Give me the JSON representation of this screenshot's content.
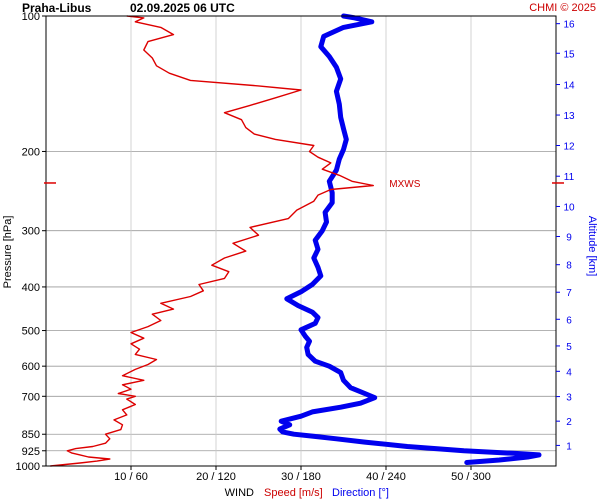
{
  "header": {
    "station": "Praha-Libus",
    "datetime": "02.09.2025 06 UTC",
    "credit": "CHMI © 2025"
  },
  "chart_data": {
    "type": "line",
    "left_axis": {
      "label": "Pressure [hPa]",
      "scale": "log",
      "range": [
        1000,
        100
      ],
      "ticks": [
        100,
        200,
        300,
        400,
        500,
        600,
        700,
        850,
        925,
        1000
      ]
    },
    "right_axis": {
      "label": "Altitude [km]",
      "ticks": [
        1,
        2,
        3,
        4,
        5,
        6,
        7,
        8,
        9,
        10,
        11,
        12,
        13,
        14,
        15,
        16
      ],
      "pressure_at_km": [
        {
          "km": 1,
          "p": 900
        },
        {
          "km": 2,
          "p": 795
        },
        {
          "km": 3,
          "p": 701
        },
        {
          "km": 4,
          "p": 616
        },
        {
          "km": 5,
          "p": 541
        },
        {
          "km": 6,
          "p": 472
        },
        {
          "km": 7,
          "p": 411
        },
        {
          "km": 8,
          "p": 357
        },
        {
          "km": 9,
          "p": 309
        },
        {
          "km": 10,
          "p": 265
        },
        {
          "km": 11,
          "p": 227
        },
        {
          "km": 12,
          "p": 194
        },
        {
          "km": 13,
          "p": 166
        },
        {
          "km": 14,
          "p": 142
        },
        {
          "km": 15,
          "p": 121
        },
        {
          "km": 16,
          "p": 104
        }
      ]
    },
    "bottom_axis": {
      "title": "WIND",
      "speed_label": "Speed [m/s]",
      "direction_label": "Direction [°]",
      "speed_range": [
        0,
        60
      ],
      "direction_range": [
        0,
        360
      ],
      "ticks": [
        {
          "speed": 10,
          "label": "10 / 60"
        },
        {
          "speed": 20,
          "label": "20 / 120"
        },
        {
          "speed": 30,
          "label": "30 / 180"
        },
        {
          "speed": 40,
          "label": "40 / 240"
        },
        {
          "speed": 50,
          "label": "50 / 300"
        }
      ]
    },
    "annotation": {
      "label": "MXWS",
      "p": 235,
      "speed": 38.5
    },
    "grid": true,
    "series": [
      {
        "name": "Speed [m/s]",
        "color": "#dd0000",
        "points": [
          [
            1000,
            0.5
          ],
          [
            985,
            4
          ],
          [
            975,
            6
          ],
          [
            965,
            7.5
          ],
          [
            955,
            5
          ],
          [
            945,
            4
          ],
          [
            935,
            3
          ],
          [
            925,
            2.5
          ],
          [
            915,
            3.5
          ],
          [
            905,
            5.5
          ],
          [
            890,
            7
          ],
          [
            870,
            7.5
          ],
          [
            850,
            7
          ],
          [
            830,
            8.8
          ],
          [
            810,
            9
          ],
          [
            790,
            8
          ],
          [
            770,
            9.5
          ],
          [
            750,
            9
          ],
          [
            730,
            10.5
          ],
          [
            710,
            9.5
          ],
          [
            700,
            10.5
          ],
          [
            690,
            8.5
          ],
          [
            675,
            10
          ],
          [
            660,
            9
          ],
          [
            645,
            11.5
          ],
          [
            630,
            9
          ],
          [
            610,
            10.5
          ],
          [
            595,
            12
          ],
          [
            580,
            13
          ],
          [
            565,
            10.5
          ],
          [
            550,
            11
          ],
          [
            535,
            10
          ],
          [
            520,
            11.5
          ],
          [
            505,
            10
          ],
          [
            490,
            12
          ],
          [
            475,
            13.5
          ],
          [
            460,
            12.5
          ],
          [
            448,
            15
          ],
          [
            435,
            13.5
          ],
          [
            420,
            17
          ],
          [
            408,
            18.5
          ],
          [
            395,
            18
          ],
          [
            383,
            21
          ],
          [
            370,
            21.5
          ],
          [
            358,
            19.5
          ],
          [
            345,
            21
          ],
          [
            333,
            23.5
          ],
          [
            320,
            22
          ],
          [
            307,
            25
          ],
          [
            295,
            24
          ],
          [
            282,
            28.5
          ],
          [
            270,
            29.5
          ],
          [
            258,
            31.5
          ],
          [
            250,
            32
          ],
          [
            243,
            33.5
          ],
          [
            238,
            38.5
          ],
          [
            233,
            36
          ],
          [
            226,
            34.5
          ],
          [
            219,
            32.5
          ],
          [
            212,
            33.5
          ],
          [
            206,
            32
          ],
          [
            200,
            31
          ],
          [
            194,
            31.5
          ],
          [
            188,
            27
          ],
          [
            183,
            24.5
          ],
          [
            177,
            23.5
          ],
          [
            170,
            23
          ],
          [
            164,
            21
          ],
          [
            158,
            24
          ],
          [
            152,
            27
          ],
          [
            146,
            30
          ],
          [
            143,
            25
          ],
          [
            139,
            17
          ],
          [
            134,
            14.5
          ],
          [
            129,
            13
          ],
          [
            124,
            12.5
          ],
          [
            119,
            11.5
          ],
          [
            114,
            12
          ],
          [
            110,
            15
          ],
          [
            106,
            13.5
          ],
          [
            103,
            10.5
          ],
          [
            101,
            11.5
          ],
          [
            100,
            9.5
          ]
        ]
      },
      {
        "name": "Direction [°]",
        "color": "#0000ee",
        "points": [
          [
            982,
            297
          ],
          [
            970,
            320
          ],
          [
            955,
            340
          ],
          [
            945,
            348
          ],
          [
            937,
            330
          ],
          [
            925,
            295
          ],
          [
            905,
            255
          ],
          [
            885,
            225
          ],
          [
            870,
            205
          ],
          [
            858,
            188
          ],
          [
            850,
            175
          ],
          [
            840,
            167
          ],
          [
            828,
            165
          ],
          [
            810,
            172
          ],
          [
            795,
            166
          ],
          [
            775,
            180
          ],
          [
            758,
            188
          ],
          [
            740,
            208
          ],
          [
            725,
            222
          ],
          [
            705,
            232
          ],
          [
            690,
            225
          ],
          [
            670,
            215
          ],
          [
            645,
            210
          ],
          [
            620,
            208
          ],
          [
            600,
            200
          ],
          [
            585,
            190
          ],
          [
            565,
            185
          ],
          [
            545,
            184
          ],
          [
            528,
            186
          ],
          [
            515,
            183
          ],
          [
            498,
            180
          ],
          [
            482,
            190
          ],
          [
            468,
            192
          ],
          [
            455,
            188
          ],
          [
            440,
            178
          ],
          [
            425,
            170
          ],
          [
            410,
            180
          ],
          [
            395,
            188
          ],
          [
            378,
            194
          ],
          [
            362,
            192
          ],
          [
            345,
            189
          ],
          [
            330,
            192
          ],
          [
            315,
            190
          ],
          [
            300,
            195
          ],
          [
            287,
            198
          ],
          [
            273,
            197
          ],
          [
            260,
            202
          ],
          [
            247,
            202
          ],
          [
            233,
            200
          ],
          [
            220,
            205
          ],
          [
            208,
            207
          ],
          [
            198,
            210
          ],
          [
            188,
            212
          ],
          [
            178,
            210
          ],
          [
            168,
            208
          ],
          [
            157,
            207
          ],
          [
            147,
            205
          ],
          [
            138,
            208
          ],
          [
            130,
            205
          ],
          [
            123,
            200
          ],
          [
            117,
            194
          ],
          [
            111,
            196
          ],
          [
            106,
            210
          ],
          [
            103,
            230
          ],
          [
            101,
            218
          ],
          [
            100,
            210
          ]
        ]
      }
    ]
  }
}
